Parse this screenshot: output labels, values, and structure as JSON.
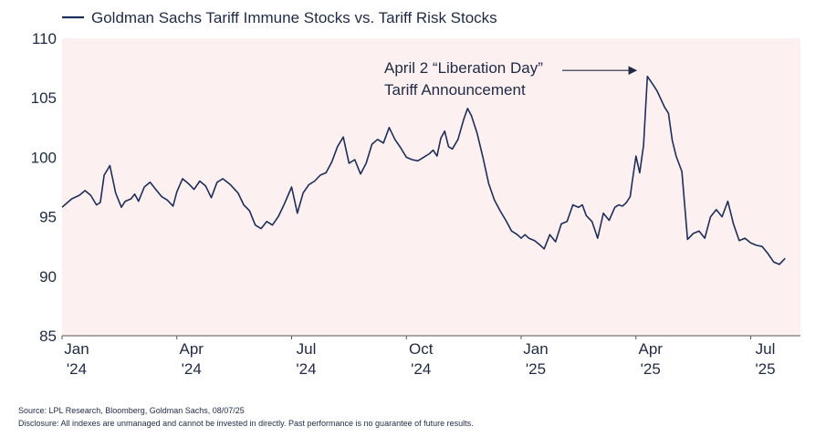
{
  "chart_data": {
    "type": "line",
    "title": "",
    "xlabel": "",
    "ylabel": "",
    "ylim": [
      85,
      110
    ],
    "yticks": [
      85,
      90,
      95,
      100,
      105,
      110
    ],
    "xticks": [
      {
        "month": 0,
        "line1": "Jan",
        "line2": "'24"
      },
      {
        "month": 3,
        "line1": "Apr",
        "line2": "'24"
      },
      {
        "month": 6,
        "line1": "Jul",
        "line2": "'24"
      },
      {
        "month": 9,
        "line1": "Oct",
        "line2": "'24"
      },
      {
        "month": 12,
        "line1": "Jan",
        "line2": "'25"
      },
      {
        "month": 15,
        "line1": "Apr",
        "line2": "'25"
      },
      {
        "month": 18,
        "line1": "Jul",
        "line2": "'25"
      }
    ],
    "xlim": [
      0,
      19.3
    ],
    "legend": {
      "placement": "top-left",
      "label": "Goldman Sachs Tariff Immune Stocks vs. Tariff Risk Stocks"
    },
    "series": [
      {
        "name": "Goldman Sachs Tariff Immune Stocks vs. Tariff Risk Stocks",
        "color": "#1c2e5c",
        "x": [
          0.0,
          0.25,
          0.45,
          0.6,
          0.75,
          0.9,
          1.0,
          1.1,
          1.25,
          1.4,
          1.55,
          1.65,
          1.8,
          1.9,
          2.0,
          2.15,
          2.3,
          2.45,
          2.6,
          2.75,
          2.9,
          3.0,
          3.15,
          3.3,
          3.45,
          3.6,
          3.75,
          3.9,
          4.05,
          4.2,
          4.4,
          4.6,
          4.75,
          4.9,
          5.05,
          5.2,
          5.35,
          5.5,
          5.65,
          5.8,
          6.0,
          6.15,
          6.3,
          6.45,
          6.6,
          6.75,
          6.9,
          7.05,
          7.2,
          7.35,
          7.5,
          7.65,
          7.8,
          7.95,
          8.1,
          8.25,
          8.4,
          8.55,
          8.7,
          8.85,
          9.0,
          9.15,
          9.3,
          9.45,
          9.6,
          9.7,
          9.8,
          9.9,
          10.0,
          10.1,
          10.2,
          10.35,
          10.5,
          10.6,
          10.7,
          10.85,
          11.0,
          11.15,
          11.3,
          11.45,
          11.6,
          11.75,
          11.9,
          12.0,
          12.1,
          12.2,
          12.35,
          12.5,
          12.6,
          12.75,
          12.9,
          13.05,
          13.2,
          13.35,
          13.5,
          13.6,
          13.7,
          13.85,
          14.0,
          14.15,
          14.3,
          14.45,
          14.55,
          14.65,
          14.75,
          14.85,
          14.9,
          15.0,
          15.1,
          15.2,
          15.3,
          15.45,
          15.55,
          15.65,
          15.75,
          15.85,
          15.95,
          16.05,
          16.2,
          16.35,
          16.5,
          16.65,
          16.8,
          16.95,
          17.1,
          17.25,
          17.4,
          17.55,
          17.7,
          17.85,
          18.0,
          18.15,
          18.3,
          18.45,
          18.6,
          18.75,
          18.9
        ],
        "values": [
          95.8,
          96.5,
          96.8,
          97.2,
          96.8,
          96.0,
          96.2,
          98.5,
          99.3,
          97.0,
          95.8,
          96.3,
          96.5,
          96.9,
          96.3,
          97.5,
          97.9,
          97.3,
          96.7,
          96.4,
          95.9,
          97.1,
          98.2,
          97.8,
          97.3,
          98.0,
          97.6,
          96.6,
          97.9,
          98.2,
          97.7,
          97.0,
          96.0,
          95.5,
          94.3,
          94.0,
          94.6,
          94.3,
          95.0,
          96.0,
          97.5,
          95.3,
          97.0,
          97.7,
          98.0,
          98.5,
          98.7,
          99.6,
          100.9,
          101.7,
          99.5,
          99.8,
          98.6,
          99.5,
          101.1,
          101.5,
          101.2,
          102.5,
          101.5,
          100.8,
          100.0,
          99.8,
          99.7,
          100.0,
          100.3,
          100.6,
          100.1,
          101.6,
          102.2,
          100.9,
          100.7,
          101.5,
          103.2,
          104.1,
          103.5,
          102.0,
          100.0,
          97.8,
          96.4,
          95.5,
          94.7,
          93.8,
          93.5,
          93.2,
          93.5,
          93.2,
          93.0,
          92.6,
          92.3,
          93.5,
          92.9,
          94.4,
          94.6,
          96.0,
          95.8,
          96.0,
          95.1,
          94.6,
          93.2,
          95.3,
          94.7,
          95.8,
          96.0,
          95.9,
          96.2,
          96.7,
          97.9,
          100.1,
          98.7,
          101.0,
          106.8,
          106.1,
          105.6,
          104.9,
          104.2,
          103.7,
          101.4,
          100.1,
          98.8,
          93.1,
          93.6,
          93.8,
          93.2,
          95.0,
          95.6,
          95.0,
          96.3,
          94.4,
          93.0,
          93.2,
          92.8,
          92.6,
          92.5,
          91.9,
          91.2,
          91.0,
          91.5
        ]
      }
    ],
    "annotation": {
      "line1": "April 2 “Liberation Day”",
      "line2": "Tariff Announcement",
      "target_x": 15.1,
      "target_y": 107.3
    }
  },
  "footer": {
    "source": "Source: LPL Research, Bloomberg, Goldman Sachs, 08/07/25",
    "disclosure": "Disclosure: All indexes are unmanaged and cannot be invested in directly. Past performance is no guarantee of future results."
  }
}
